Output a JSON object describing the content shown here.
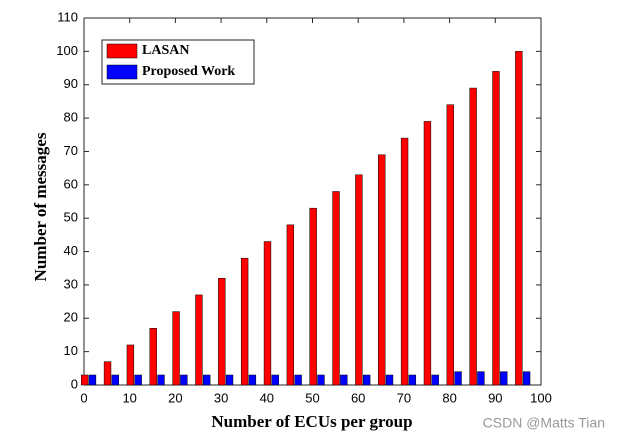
{
  "chart_data": {
    "type": "bar",
    "x_label": "Number of ECUs per group",
    "y_label": "Number of messages",
    "x": [
      1,
      6,
      11,
      16,
      21,
      26,
      31,
      36,
      41,
      46,
      51,
      56,
      61,
      66,
      71,
      76,
      81,
      86,
      91,
      96
    ],
    "series": [
      {
        "name": "LASAN",
        "color": "#ff0000",
        "values": [
          3,
          7,
          12,
          17,
          22,
          27,
          32,
          38,
          43,
          48,
          53,
          58,
          63,
          69,
          74,
          79,
          84,
          89,
          94,
          100
        ]
      },
      {
        "name": "Proposed Work",
        "color": "#0000ff",
        "values": [
          3,
          3,
          3,
          3,
          3,
          3,
          3,
          3,
          3,
          3,
          3,
          3,
          3,
          3,
          3,
          3,
          4,
          4,
          4,
          4
        ]
      }
    ],
    "xlim": [
      0,
      100
    ],
    "xticks": [
      0,
      10,
      20,
      30,
      40,
      50,
      60,
      70,
      80,
      90,
      100
    ],
    "ylim": [
      0,
      110
    ],
    "yticks": [
      0,
      10,
      20,
      30,
      40,
      50,
      60,
      70,
      80,
      90,
      100,
      110
    ],
    "legend": "upper left",
    "watermark": "CSDN @Matts Tian"
  }
}
